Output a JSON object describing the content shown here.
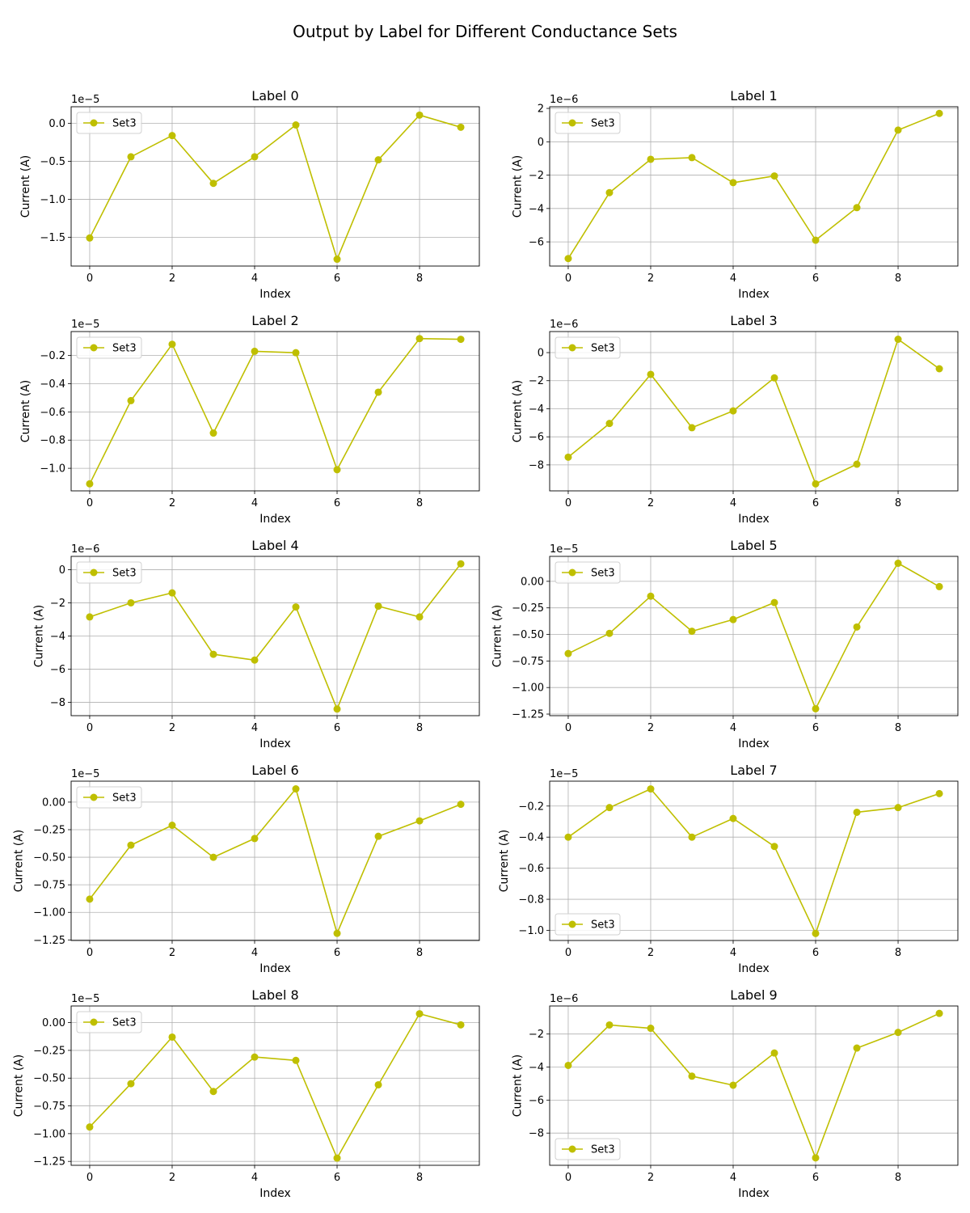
{
  "figure": {
    "title": "Output by Label for Different Conductance Sets"
  },
  "chart_data": [
    {
      "type": "line",
      "title": "Label 0",
      "xlabel": "Index",
      "ylabel": "Current (A)",
      "offset_text": "1e−5",
      "xlim": [
        -0.45,
        9.45
      ],
      "ylim": [
        -1.88,
        0.22
      ],
      "xticks": [
        0,
        2,
        4,
        6,
        8
      ],
      "yticks": [
        0.0,
        -0.5,
        -1.0,
        -1.5
      ],
      "ytick_labels": [
        "0.0",
        "−0.5",
        "−1.0",
        "−1.5"
      ],
      "legend": "upper left",
      "grid": true,
      "series": [
        {
          "name": "Set3",
          "color": "#bfbf00",
          "x": [
            0,
            1,
            2,
            3,
            4,
            5,
            6,
            7,
            8,
            9
          ],
          "y": [
            -1.51,
            -0.44,
            -0.16,
            -0.79,
            -0.44,
            -0.02,
            -1.79,
            -0.48,
            0.11,
            -0.05
          ]
        }
      ]
    },
    {
      "type": "line",
      "title": "Label 1",
      "xlabel": "Index",
      "ylabel": "Current (A)",
      "offset_text": "1e−6",
      "xlim": [
        -0.45,
        9.45
      ],
      "ylim": [
        -7.45,
        2.1
      ],
      "xticks": [
        0,
        2,
        4,
        6,
        8
      ],
      "yticks": [
        2,
        0,
        -2,
        -4,
        -6
      ],
      "ytick_labels": [
        "2",
        "0",
        "−2",
        "−4",
        "−6"
      ],
      "legend": "upper left",
      "grid": true,
      "series": [
        {
          "name": "Set3",
          "color": "#bfbf00",
          "x": [
            0,
            1,
            2,
            3,
            4,
            5,
            6,
            7,
            8,
            9
          ],
          "y": [
            -7.0,
            -3.05,
            -1.05,
            -0.95,
            -2.45,
            -2.05,
            -5.9,
            -3.95,
            0.7,
            1.7
          ]
        }
      ]
    },
    {
      "type": "line",
      "title": "Label 2",
      "xlabel": "Index",
      "ylabel": "Current (A)",
      "offset_text": "1e−5",
      "xlim": [
        -0.45,
        9.45
      ],
      "ylim": [
        -1.16,
        -0.03
      ],
      "xticks": [
        0,
        2,
        4,
        6,
        8
      ],
      "yticks": [
        -0.2,
        -0.4,
        -0.6,
        -0.8,
        -1.0
      ],
      "ytick_labels": [
        "−0.2",
        "−0.4",
        "−0.6",
        "−0.8",
        "−1.0"
      ],
      "legend": "upper left",
      "grid": true,
      "series": [
        {
          "name": "Set3",
          "color": "#bfbf00",
          "x": [
            0,
            1,
            2,
            3,
            4,
            5,
            6,
            7,
            8,
            9
          ],
          "y": [
            -1.11,
            -0.52,
            -0.12,
            -0.75,
            -0.17,
            -0.18,
            -1.01,
            -0.46,
            -0.08,
            -0.085
          ]
        }
      ]
    },
    {
      "type": "line",
      "title": "Label 3",
      "xlabel": "Index",
      "ylabel": "Current (A)",
      "offset_text": "1e−6",
      "xlim": [
        -0.45,
        9.45
      ],
      "ylim": [
        -9.85,
        1.5
      ],
      "xticks": [
        0,
        2,
        4,
        6,
        8
      ],
      "yticks": [
        0,
        -2,
        -4,
        -6,
        -8
      ],
      "ytick_labels": [
        "0",
        "−2",
        "−4",
        "−6",
        "−8"
      ],
      "legend": "upper left",
      "grid": true,
      "series": [
        {
          "name": "Set3",
          "color": "#bfbf00",
          "x": [
            0,
            1,
            2,
            3,
            4,
            5,
            6,
            7,
            8,
            9
          ],
          "y": [
            -7.45,
            -5.05,
            -1.55,
            -5.35,
            -4.15,
            -1.8,
            -9.35,
            -7.95,
            0.95,
            -1.15
          ]
        }
      ]
    },
    {
      "type": "line",
      "title": "Label 4",
      "xlabel": "Index",
      "ylabel": "Current (A)",
      "offset_text": "1e−6",
      "xlim": [
        -0.45,
        9.45
      ],
      "ylim": [
        -8.8,
        0.8
      ],
      "xticks": [
        0,
        2,
        4,
        6,
        8
      ],
      "yticks": [
        0,
        -2,
        -4,
        -6,
        -8
      ],
      "ytick_labels": [
        "0",
        "−2",
        "−4",
        "−6",
        "−8"
      ],
      "legend": "upper left",
      "grid": true,
      "series": [
        {
          "name": "Set3",
          "color": "#bfbf00",
          "x": [
            0,
            1,
            2,
            3,
            4,
            5,
            6,
            7,
            8,
            9
          ],
          "y": [
            -2.85,
            -2.0,
            -1.4,
            -5.1,
            -5.45,
            -2.25,
            -8.4,
            -2.2,
            -2.85,
            0.35
          ]
        }
      ]
    },
    {
      "type": "line",
      "title": "Label 5",
      "xlabel": "Index",
      "ylabel": "Current (A)",
      "offset_text": "1e−5",
      "xlim": [
        -0.45,
        9.45
      ],
      "ylim": [
        -1.265,
        0.235
      ],
      "xticks": [
        0,
        2,
        4,
        6,
        8
      ],
      "yticks": [
        0.0,
        -0.25,
        -0.5,
        -0.75,
        -1.0,
        -1.25
      ],
      "ytick_labels": [
        "0.00",
        "−0.25",
        "−0.50",
        "−0.75",
        "−1.00",
        "−1.25"
      ],
      "legend": "upper left",
      "grid": true,
      "series": [
        {
          "name": "Set3",
          "color": "#bfbf00",
          "x": [
            0,
            1,
            2,
            3,
            4,
            5,
            6,
            7,
            8,
            9
          ],
          "y": [
            -0.68,
            -0.49,
            -0.14,
            -0.47,
            -0.36,
            -0.2,
            -1.2,
            -0.43,
            0.17,
            -0.05
          ]
        }
      ]
    },
    {
      "type": "line",
      "title": "Label 6",
      "xlabel": "Index",
      "ylabel": "Current (A)",
      "offset_text": "1e−5",
      "xlim": [
        -0.45,
        9.45
      ],
      "ylim": [
        -1.255,
        0.19
      ],
      "xticks": [
        0,
        2,
        4,
        6,
        8
      ],
      "yticks": [
        0.0,
        -0.25,
        -0.5,
        -0.75,
        -1.0,
        -1.25
      ],
      "ytick_labels": [
        "0.00",
        "−0.25",
        "−0.50",
        "−0.75",
        "−1.00",
        "−1.25"
      ],
      "legend": "upper left",
      "grid": true,
      "series": [
        {
          "name": "Set3",
          "color": "#bfbf00",
          "x": [
            0,
            1,
            2,
            3,
            4,
            5,
            6,
            7,
            8,
            9
          ],
          "y": [
            -0.88,
            -0.39,
            -0.21,
            -0.5,
            -0.33,
            0.12,
            -1.19,
            -0.31,
            -0.17,
            -0.02
          ]
        }
      ]
    },
    {
      "type": "line",
      "title": "Label 7",
      "xlabel": "Index",
      "ylabel": "Current (A)",
      "offset_text": "1e−5",
      "xlim": [
        -0.45,
        9.45
      ],
      "ylim": [
        -1.065,
        -0.04
      ],
      "xticks": [
        0,
        2,
        4,
        6,
        8
      ],
      "yticks": [
        -0.2,
        -0.4,
        -0.6,
        -0.8,
        -1.0
      ],
      "ytick_labels": [
        "−0.2",
        "−0.4",
        "−0.6",
        "−0.8",
        "−1.0"
      ],
      "legend": "lower left",
      "grid": true,
      "series": [
        {
          "name": "Set3",
          "color": "#bfbf00",
          "x": [
            0,
            1,
            2,
            3,
            4,
            5,
            6,
            7,
            8,
            9
          ],
          "y": [
            -0.4,
            -0.21,
            -0.09,
            -0.4,
            -0.28,
            -0.46,
            -1.02,
            -0.24,
            -0.21,
            -0.12
          ]
        }
      ]
    },
    {
      "type": "line",
      "title": "Label 8",
      "xlabel": "Index",
      "ylabel": "Current (A)",
      "offset_text": "1e−5",
      "xlim": [
        -0.45,
        9.45
      ],
      "ylim": [
        -1.285,
        0.15
      ],
      "xticks": [
        0,
        2,
        4,
        6,
        8
      ],
      "yticks": [
        0.0,
        -0.25,
        -0.5,
        -0.75,
        -1.0,
        -1.25
      ],
      "ytick_labels": [
        "0.00",
        "−0.25",
        "−0.50",
        "−0.75",
        "−1.00",
        "−1.25"
      ],
      "legend": "upper left",
      "grid": true,
      "series": [
        {
          "name": "Set3",
          "color": "#bfbf00",
          "x": [
            0,
            1,
            2,
            3,
            4,
            5,
            6,
            7,
            8,
            9
          ],
          "y": [
            -0.94,
            -0.55,
            -0.13,
            -0.62,
            -0.31,
            -0.34,
            -1.22,
            -0.56,
            0.08,
            -0.02
          ]
        }
      ]
    },
    {
      "type": "line",
      "title": "Label 9",
      "xlabel": "Index",
      "ylabel": "Current (A)",
      "offset_text": "1e−6",
      "xlim": [
        -0.45,
        9.45
      ],
      "ylim": [
        -9.95,
        -0.3
      ],
      "xticks": [
        0,
        2,
        4,
        6,
        8
      ],
      "yticks": [
        -2,
        -4,
        -6,
        -8
      ],
      "ytick_labels": [
        "−2",
        "−4",
        "−6",
        "−8"
      ],
      "legend": "lower left",
      "grid": true,
      "series": [
        {
          "name": "Set3",
          "color": "#bfbf00",
          "x": [
            0,
            1,
            2,
            3,
            4,
            5,
            6,
            7,
            8,
            9
          ],
          "y": [
            -3.9,
            -1.45,
            -1.65,
            -4.55,
            -5.1,
            -3.15,
            -9.5,
            -2.85,
            -1.9,
            -0.75
          ]
        }
      ]
    }
  ]
}
